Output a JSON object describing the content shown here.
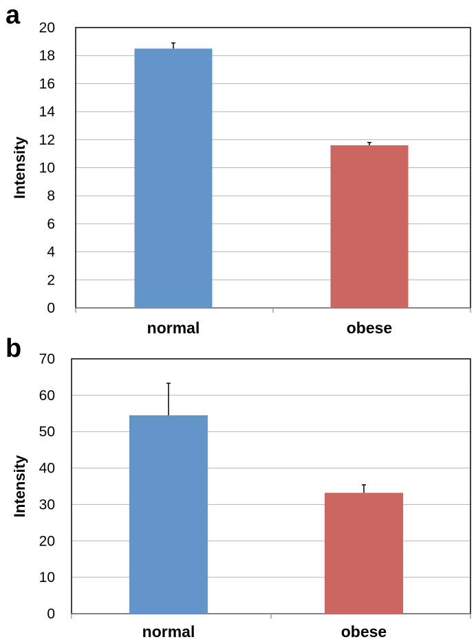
{
  "colors": {
    "normal": "#6394CA",
    "obese": "#CC6660"
  },
  "chart_data": [
    {
      "panel": "a",
      "type": "bar",
      "categories": [
        "normal",
        "obese"
      ],
      "values": [
        18.5,
        11.6
      ],
      "errors": [
        0.4,
        0.2
      ],
      "ylabel": "Intensity",
      "xlabel": "",
      "ylim": [
        0,
        20
      ],
      "yticks": [
        0,
        2,
        4,
        6,
        8,
        10,
        12,
        14,
        16,
        18,
        20
      ],
      "grid": true
    },
    {
      "panel": "b",
      "type": "bar",
      "categories": [
        "normal",
        "obese"
      ],
      "values": [
        54.5,
        33.2
      ],
      "errors": [
        8.8,
        2.2
      ],
      "ylabel": "Intensity",
      "xlabel": "",
      "ylim": [
        0,
        70
      ],
      "yticks": [
        0,
        10,
        20,
        30,
        40,
        50,
        60,
        70
      ],
      "grid": true
    }
  ]
}
